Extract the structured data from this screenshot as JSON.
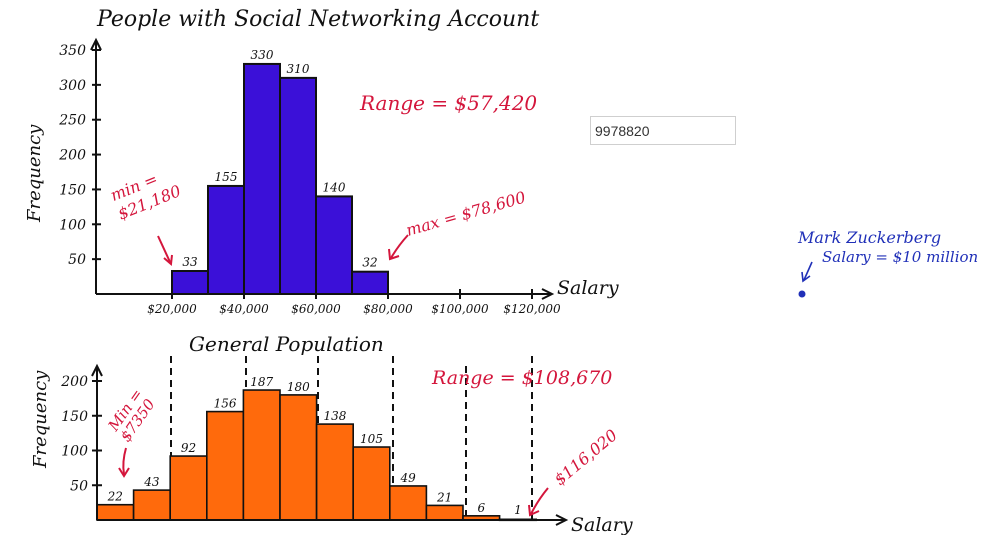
{
  "input": {
    "value": "9978820"
  },
  "colors": {
    "top_bar": "#3b10d8",
    "bottom_bar": "#ff6a0c",
    "ink": "#111111",
    "red": "#d4163c",
    "blue": "#2030b8"
  },
  "chart_data": [
    {
      "type": "bar",
      "title": "People with Social Networking Account",
      "xlabel": "Salary",
      "ylabel": "Frequency",
      "ylim": [
        0,
        350
      ],
      "y_ticks": [
        "50",
        "100",
        "150",
        "200",
        "250",
        "300",
        "350"
      ],
      "x_ticks": [
        "$20,000",
        "$40,000",
        "$60,000",
        "$80,000",
        "$100,000",
        "$120,000"
      ],
      "bins": [
        {
          "from": 20000,
          "to": 30000,
          "value": 33,
          "label": "33"
        },
        {
          "from": 30000,
          "to": 40000,
          "value": 155,
          "label": "155"
        },
        {
          "from": 40000,
          "to": 50000,
          "value": 330,
          "label": "330"
        },
        {
          "from": 50000,
          "to": 60000,
          "value": 310,
          "label": "310"
        },
        {
          "from": 60000,
          "to": 70000,
          "value": 140,
          "label": "140"
        },
        {
          "from": 70000,
          "to": 80000,
          "value": 32,
          "label": "32"
        }
      ],
      "annotations": {
        "range": "Range = $57,420",
        "min_label": "min =",
        "min_value": "$21,180",
        "max": "max = $78,600"
      }
    },
    {
      "type": "bar",
      "title": "General Population",
      "xlabel": "Salary",
      "ylabel": "Frequency",
      "ylim": [
        0,
        200
      ],
      "y_ticks": [
        "50",
        "100",
        "150",
        "200"
      ],
      "bins": [
        {
          "value": 22,
          "label": "22"
        },
        {
          "value": 43,
          "label": "43"
        },
        {
          "value": 92,
          "label": "92"
        },
        {
          "value": 156,
          "label": "156"
        },
        {
          "value": 187,
          "label": "187"
        },
        {
          "value": 180,
          "label": "180"
        },
        {
          "value": 138,
          "label": "138"
        },
        {
          "value": 105,
          "label": "105"
        },
        {
          "value": 49,
          "label": "49"
        },
        {
          "value": 21,
          "label": "21"
        },
        {
          "value": 6,
          "label": "6"
        },
        {
          "value": 1,
          "label": "1"
        }
      ],
      "annotations": {
        "range": "Range = $108,670",
        "min_label": "Min =",
        "min_value": "$7350",
        "max_value": "$116,020"
      }
    }
  ],
  "side_note": {
    "line1": "Mark Zuckerberg",
    "line2": "Salary = $10 million"
  }
}
